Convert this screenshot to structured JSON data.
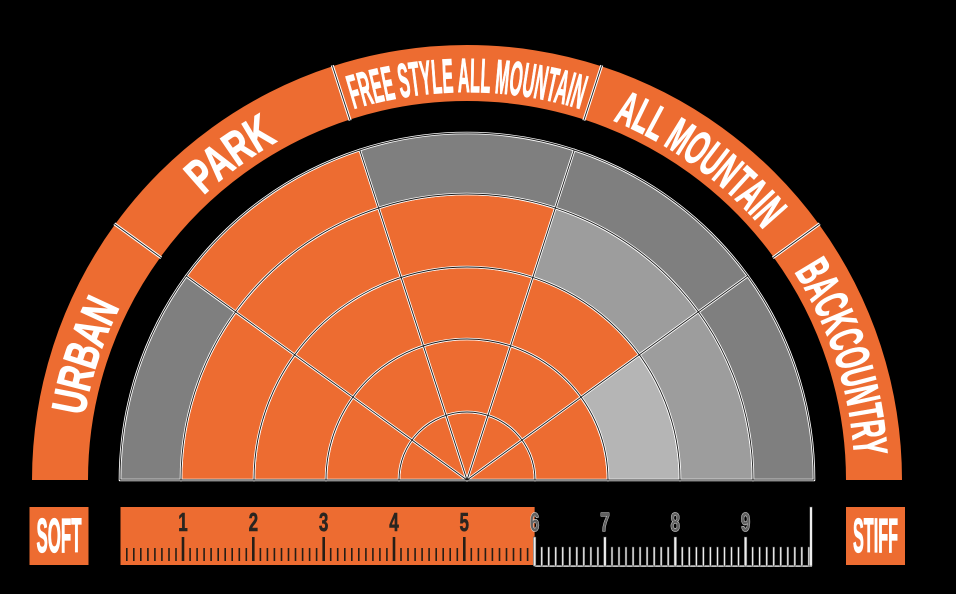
{
  "chart_data": {
    "type": "heatmap",
    "polar": true,
    "title": "",
    "categories": [
      "URBAN",
      "PARK",
      "FREE STYLE ALL MOUNTAIN",
      "ALL MOUNTAIN",
      "BACKCOUNTRY"
    ],
    "category_slugs": [
      "urban",
      "park",
      "freestyle-all-mountain",
      "all-mountain",
      "backcountry"
    ],
    "rings": [
      1,
      2,
      3,
      4,
      5
    ],
    "cells": [
      [
        "orange",
        "orange",
        "orange",
        "orange",
        "gray_dark"
      ],
      [
        "orange",
        "orange",
        "orange",
        "orange",
        "orange"
      ],
      [
        "orange",
        "orange",
        "orange",
        "orange",
        "gray_dark"
      ],
      [
        "orange",
        "orange",
        "orange",
        "gray_mid",
        "gray_dark"
      ],
      [
        "orange",
        "orange",
        "gray_light",
        "gray_mid",
        "gray_dark"
      ]
    ],
    "orange_rings_per_category": [
      4,
      5,
      4,
      3,
      2
    ],
    "legend_position": "none",
    "grid": true
  },
  "ruler": {
    "soft_label": "SOFT",
    "stiff_label": "STIFF",
    "numbers": [
      "1",
      "2",
      "3",
      "4",
      "5",
      "6",
      "7",
      "8",
      "9"
    ],
    "orange_zone_end": 6,
    "scale_min": 0,
    "scale_max": 10,
    "minor_ticks_per_unit": 10
  },
  "colors": {
    "orange": "#ED6C31",
    "gray_dark": "#7F7F7F",
    "gray_mid": "#9D9D9D",
    "gray_light": "#B5B5B5",
    "background": "#000000",
    "label_text": "#FFFFFF",
    "grid_line": "#1A1A1A",
    "seam_white": "#FFFFFF",
    "tick_dark": "#261E16",
    "number_dark": "#2A2520",
    "number_gray": "#616161",
    "tick_light": "#EDEDED"
  },
  "icons": []
}
